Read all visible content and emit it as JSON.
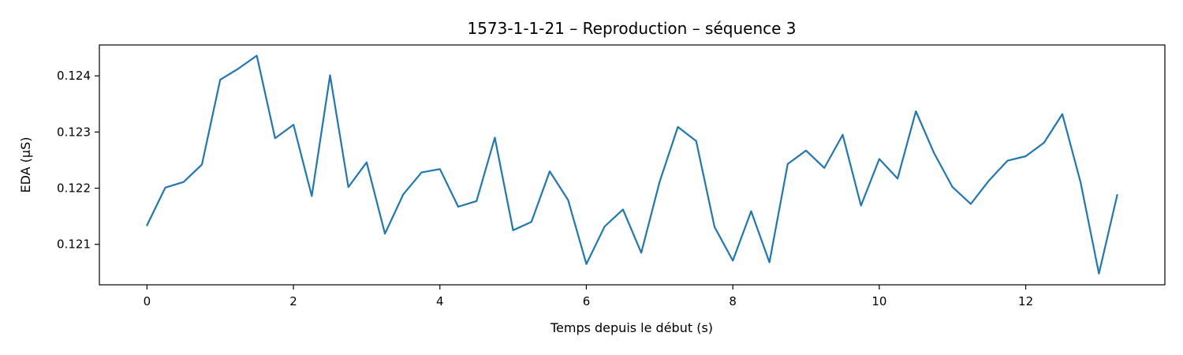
{
  "chart_data": {
    "type": "line",
    "title": "1573-1-1-21 – Reproduction – séquence 3",
    "xlabel": "Temps depuis le début (s)",
    "ylabel": "EDA (µS)",
    "xlim": [
      -0.65,
      13.9
    ],
    "ylim": [
      0.12028,
      0.12455
    ],
    "xticks": [
      0,
      2,
      4,
      6,
      8,
      10,
      12
    ],
    "xtick_labels": [
      "0",
      "2",
      "4",
      "6",
      "8",
      "10",
      "12"
    ],
    "yticks": [
      0.121,
      0.122,
      0.123,
      0.124
    ],
    "ytick_labels": [
      "0.121",
      "0.122",
      "0.123",
      "0.124"
    ],
    "grid": false,
    "color": "#1f77b4",
    "series": [
      {
        "x": [
          0,
          0.25,
          0.5,
          0.75,
          1,
          1.25,
          1.5,
          1.75,
          2,
          2.25,
          2.5,
          2.75,
          3,
          3.25,
          3.5,
          3.75,
          4,
          4.25,
          4.5,
          4.75,
          5,
          5.25,
          5.5,
          5.75,
          6,
          6.25,
          6.5,
          6.75,
          7,
          7.25,
          7.5,
          7.75,
          8,
          8.25,
          8.5,
          8.75,
          9,
          9.25,
          9.5,
          9.75,
          10,
          10.25,
          10.5,
          10.75,
          11,
          11.25,
          11.5,
          11.75,
          12,
          12.25,
          12.5,
          12.75,
          13,
          13.25
        ],
        "values": [
          0.12134,
          0.12201,
          0.12211,
          0.12242,
          0.12393,
          0.12413,
          0.12436,
          0.12289,
          0.12313,
          0.12186,
          0.12401,
          0.12202,
          0.12246,
          0.12119,
          0.12189,
          0.12228,
          0.12234,
          0.12167,
          0.12177,
          0.1229,
          0.12125,
          0.1214,
          0.1223,
          0.12179,
          0.12065,
          0.12132,
          0.12162,
          0.12085,
          0.12211,
          0.12309,
          0.12284,
          0.12131,
          0.12071,
          0.12159,
          0.12068,
          0.12243,
          0.12267,
          0.12236,
          0.12295,
          0.12169,
          0.12252,
          0.12217,
          0.12337,
          0.12262,
          0.12202,
          0.12172,
          0.12214,
          0.12249,
          0.12257,
          0.12281,
          0.12332,
          0.1221,
          0.12048,
          0.12188
        ]
      }
    ]
  }
}
